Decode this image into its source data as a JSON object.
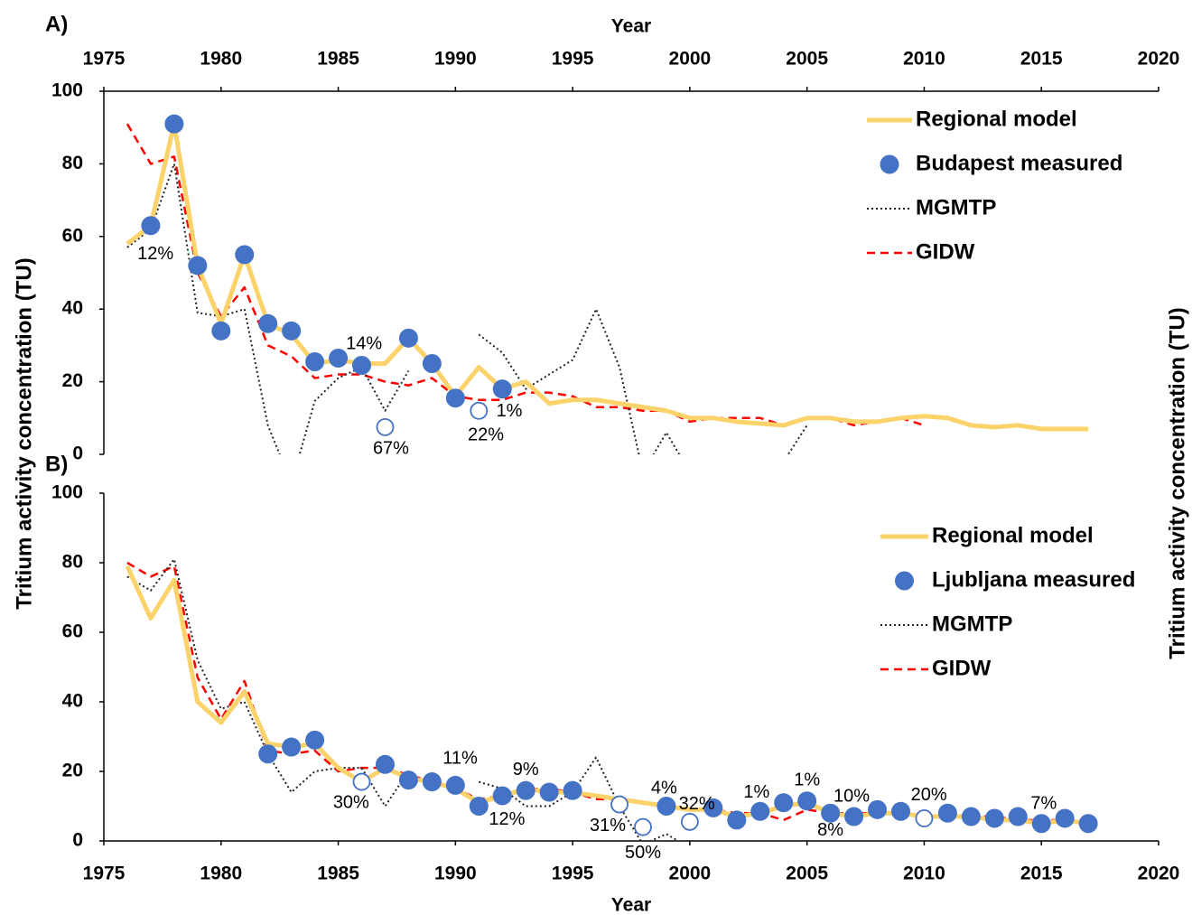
{
  "chart_data": [
    {
      "type": "line",
      "panel_label": "A)",
      "xlabel": "Year",
      "ylabel": "Tritium activity concentration (TU)",
      "x_axis_position": "top",
      "legend": "upper right",
      "xlim": [
        1975,
        2020
      ],
      "xticks": [
        1975,
        1980,
        1985,
        1990,
        1995,
        2000,
        2005,
        2010,
        2015,
        2020
      ],
      "ylim": [
        0,
        100
      ],
      "yticks": [
        0,
        20,
        40,
        60,
        80,
        100
      ],
      "x": [
        1976,
        1977,
        1978,
        1979,
        1980,
        1981,
        1982,
        1983,
        1984,
        1985,
        1986,
        1987,
        1988,
        1989,
        1990,
        1991,
        1992,
        1993,
        1994,
        1995,
        1996,
        1997,
        1998,
        1999,
        2000,
        2001,
        2002,
        2003,
        2004,
        2005,
        2006,
        2007,
        2008,
        2009,
        2010,
        2011,
        2012,
        2013,
        2014,
        2015,
        2016,
        2017
      ],
      "series": [
        {
          "name": "Regional model",
          "color": "#fcd36a",
          "style": "solid",
          "values": [
            58,
            63,
            91,
            52,
            36,
            55,
            36,
            33,
            25,
            26,
            25,
            25,
            32,
            25,
            16,
            24,
            18,
            20,
            14,
            15,
            15,
            14,
            13,
            12,
            10,
            10,
            9,
            8.5,
            8,
            10,
            10,
            9,
            9,
            10,
            10.5,
            10,
            8,
            7.5,
            8,
            7,
            7,
            7
          ]
        },
        {
          "name": "Budapest measured",
          "color": "#4472c4",
          "style": "markers",
          "values": [
            null,
            63,
            91,
            52,
            34,
            55,
            36,
            34,
            25.5,
            26.5,
            24.5,
            null,
            32,
            25,
            15.5,
            null,
            18,
            null,
            null,
            null,
            null,
            null,
            null,
            null,
            null,
            null,
            null,
            null,
            null,
            null,
            null,
            null,
            null,
            null,
            null,
            null,
            null,
            null,
            null,
            null,
            null,
            null
          ]
        },
        {
          "name": "MGMTP",
          "color": "#222222",
          "style": "dotted",
          "values": [
            57,
            62,
            80,
            39,
            38,
            40,
            8,
            -8,
            14.7,
            21,
            24,
            12,
            23,
            null,
            null,
            33,
            28,
            18,
            22,
            26,
            40,
            24,
            -5,
            6,
            -5,
            null,
            null,
            null,
            -2,
            8,
            null,
            null,
            null,
            null,
            null,
            null,
            null,
            null,
            null,
            null,
            null,
            null
          ]
        },
        {
          "name": "GIDW",
          "color": "#ff0000",
          "style": "dashed",
          "values": [
            91,
            80,
            82,
            50,
            38,
            46,
            30,
            27,
            21,
            22,
            22,
            20,
            19,
            21,
            16,
            15,
            15,
            17,
            17,
            16,
            13,
            13,
            12,
            12,
            9,
            10,
            10,
            10,
            8,
            10,
            10,
            8,
            9,
            10,
            8,
            null,
            null,
            null,
            null,
            null,
            null,
            null
          ]
        }
      ],
      "open_markers": {
        "x": [
          1987,
          1991
        ],
        "values": [
          7.5,
          12
        ]
      },
      "annotations": [
        {
          "text": "12%",
          "x": 1977.2,
          "y": 55
        },
        {
          "text": "14%",
          "x": 1986.1,
          "y": 30.3
        },
        {
          "text": "67%",
          "x": 1987.25,
          "y": 1.5
        },
        {
          "text": "1%",
          "x": 1992.3,
          "y": 11.7
        },
        {
          "text": "22%",
          "x": 1991.3,
          "y": 5.2
        }
      ]
    },
    {
      "type": "line",
      "panel_label": "B)",
      "xlabel": "Year",
      "ylabel": "Tritium activity concentration (TU)",
      "x_axis_position": "bottom",
      "legend": "upper right",
      "xlim": [
        1975,
        2020
      ],
      "xticks": [
        1975,
        1980,
        1985,
        1990,
        1995,
        2000,
        2005,
        2010,
        2015,
        2020
      ],
      "ylim": [
        0,
        100
      ],
      "yticks": [
        0,
        20,
        40,
        60,
        80,
        100
      ],
      "x": [
        1976,
        1977,
        1978,
        1979,
        1980,
        1981,
        1982,
        1983,
        1984,
        1985,
        1986,
        1987,
        1988,
        1989,
        1990,
        1991,
        1992,
        1993,
        1994,
        1995,
        1996,
        1997,
        1998,
        1999,
        2000,
        2001,
        2002,
        2003,
        2004,
        2005,
        2006,
        2007,
        2008,
        2009,
        2010,
        2011,
        2012,
        2013,
        2014,
        2015,
        2016,
        2017
      ],
      "series": [
        {
          "name": "Regional model",
          "color": "#fcd36a",
          "style": "solid",
          "values": [
            79,
            64,
            75,
            40,
            34,
            43,
            28,
            27,
            28,
            21,
            17,
            21,
            18,
            17,
            15,
            11,
            13,
            15,
            14,
            14,
            13,
            12,
            11,
            10,
            9,
            9,
            7,
            8,
            10,
            11,
            8,
            7,
            8,
            8,
            7,
            7,
            7,
            6,
            6,
            5,
            6,
            5
          ]
        },
        {
          "name": "Ljubljana measured",
          "color": "#4472c4",
          "style": "markers",
          "values": [
            null,
            null,
            null,
            null,
            null,
            null,
            25,
            27,
            29,
            null,
            null,
            22,
            17.5,
            17,
            16,
            10,
            13,
            14.5,
            14,
            14.5,
            null,
            null,
            null,
            10,
            null,
            9.5,
            6,
            8.5,
            11,
            11.5,
            8,
            7,
            9,
            8.5,
            null,
            8,
            7,
            6.5,
            7,
            5,
            6.5,
            5
          ]
        },
        {
          "name": "MGMTP",
          "color": "#222222",
          "style": "dotted",
          "values": [
            76,
            72,
            81,
            52,
            38,
            40,
            25,
            14,
            20,
            21,
            21,
            10,
            20,
            null,
            null,
            17,
            15,
            10,
            10,
            14,
            24,
            10,
            -1,
            2,
            -2,
            null,
            null,
            null,
            null,
            null,
            null,
            null,
            null,
            null,
            null,
            null,
            null,
            null,
            null,
            null,
            null,
            null
          ]
        },
        {
          "name": "GIDW",
          "color": "#ff0000",
          "style": "dashed",
          "values": [
            80,
            76,
            79,
            47,
            35,
            46,
            26,
            25,
            26,
            20,
            21,
            21,
            19,
            17,
            15,
            12,
            13,
            15,
            15,
            14,
            12,
            12,
            11,
            10,
            9,
            9,
            8,
            8,
            6,
            9,
            8,
            8,
            8,
            8,
            7,
            7,
            7,
            7,
            6,
            6,
            6,
            5
          ]
        }
      ],
      "open_markers": {
        "x": [
          1986,
          1997,
          1998,
          2000,
          2010
        ],
        "values": [
          17,
          10.5,
          4,
          5.5,
          6.5
        ]
      },
      "annotations": [
        {
          "text": "11%",
          "x": 1990.2,
          "y": 23.6
        },
        {
          "text": "30%",
          "x": 1985.55,
          "y": 10.9
        },
        {
          "text": "9%",
          "x": 1993,
          "y": 20.3
        },
        {
          "text": "12%",
          "x": 1992.2,
          "y": 6
        },
        {
          "text": "31%",
          "x": 1996.5,
          "y": 4.2
        },
        {
          "text": "50%",
          "x": 1998,
          "y": -3.6
        },
        {
          "text": "4%",
          "x": 1998.9,
          "y": 15
        },
        {
          "text": "32%",
          "x": 2000.3,
          "y": 10.4
        },
        {
          "text": "1%",
          "x": 2002.85,
          "y": 13.8
        },
        {
          "text": "1%",
          "x": 2005,
          "y": 17.4
        },
        {
          "text": "10%",
          "x": 2006.9,
          "y": 12.7
        },
        {
          "text": "8%",
          "x": 2006,
          "y": 2.9
        },
        {
          "text": "20%",
          "x": 2010.2,
          "y": 13
        },
        {
          "text": "7%",
          "x": 2015.1,
          "y": 10.6
        }
      ]
    }
  ]
}
